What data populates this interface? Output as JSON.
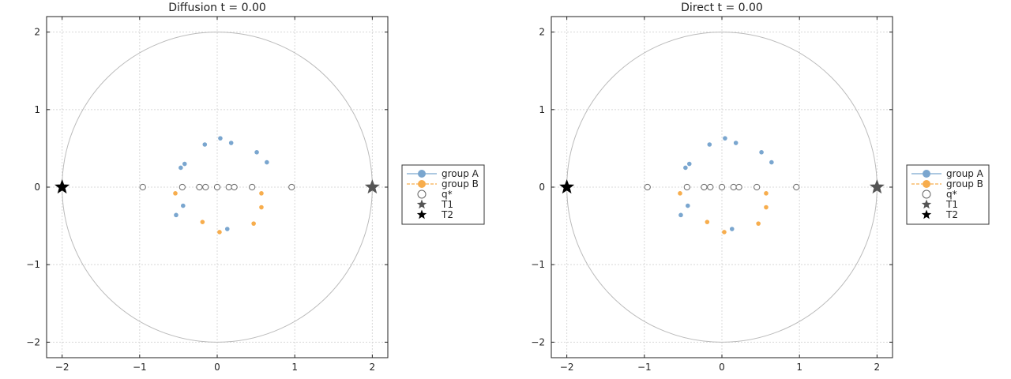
{
  "colors": {
    "group_a": "#7aa6cf",
    "group_b": "#f7ad4d",
    "q_star_stroke": "#666666",
    "t1": "#555555",
    "t2": "#000000",
    "circle": "#bbbbbb",
    "grid": "#d8d8d8"
  },
  "legend": {
    "placement": "outside-right",
    "entries": [
      {
        "label": "group A",
        "marker": "circle-filled",
        "line": "solid",
        "color": "#7aa6cf"
      },
      {
        "label": "group B",
        "marker": "circle-filled",
        "line": "dashed",
        "color": "#f7ad4d"
      },
      {
        "label": "q*",
        "marker": "circle-open",
        "color": "#666666"
      },
      {
        "label": "T1",
        "marker": "star",
        "color": "#555555"
      },
      {
        "label": "T2",
        "marker": "star",
        "color": "#000000"
      }
    ]
  },
  "chart_data": [
    {
      "type": "scatter",
      "title": "Diffusion   t = 0.00",
      "xlim": [
        -2.2,
        2.2
      ],
      "ylim": [
        -2.2,
        2.2
      ],
      "xticks": [
        -2,
        -1,
        0,
        1,
        2
      ],
      "yticks": [
        -2,
        -1,
        0,
        1,
        2
      ],
      "xtick_labels": [
        "−2",
        "−1",
        "0",
        "1",
        "2"
      ],
      "ytick_labels": [
        "−2",
        "−1",
        "0",
        "1",
        "2"
      ],
      "grid": true,
      "boundary_circle_radius": 2,
      "series": [
        {
          "name": "group A",
          "points": [
            [
              0.04,
              0.63
            ],
            [
              0.18,
              0.57
            ],
            [
              -0.16,
              0.55
            ],
            [
              0.51,
              0.45
            ],
            [
              0.64,
              0.32
            ],
            [
              -0.42,
              0.3
            ],
            [
              -0.47,
              0.25
            ],
            [
              -0.44,
              -0.24
            ],
            [
              -0.53,
              -0.36
            ],
            [
              0.13,
              -0.54
            ]
          ]
        },
        {
          "name": "group B",
          "points": [
            [
              -0.54,
              -0.08
            ],
            [
              0.57,
              -0.08
            ],
            [
              0.57,
              -0.26
            ],
            [
              -0.19,
              -0.45
            ],
            [
              0.47,
              -0.47
            ],
            [
              0.03,
              -0.58
            ]
          ]
        },
        {
          "name": "q*",
          "points": [
            [
              -0.96,
              0
            ],
            [
              -0.45,
              0
            ],
            [
              -0.23,
              0
            ],
            [
              -0.15,
              0
            ],
            [
              0,
              0
            ],
            [
              0.15,
              0
            ],
            [
              0.22,
              0
            ],
            [
              0.45,
              0
            ],
            [
              0.96,
              0
            ]
          ]
        },
        {
          "name": "T1",
          "points": [
            [
              2,
              0
            ]
          ]
        },
        {
          "name": "T2",
          "points": [
            [
              -2,
              0
            ]
          ]
        }
      ]
    },
    {
      "type": "scatter",
      "title": "Direct   t = 0.00",
      "xlim": [
        -2.2,
        2.2
      ],
      "ylim": [
        -2.2,
        2.2
      ],
      "xticks": [
        -2,
        -1,
        0,
        1,
        2
      ],
      "yticks": [
        -2,
        -1,
        0,
        1,
        2
      ],
      "xtick_labels": [
        "−2",
        "−1",
        "0",
        "1",
        "2"
      ],
      "ytick_labels": [
        "−2",
        "−1",
        "0",
        "1",
        "2"
      ],
      "grid": true,
      "boundary_circle_radius": 2,
      "series": [
        {
          "name": "group A",
          "points": [
            [
              0.04,
              0.63
            ],
            [
              0.18,
              0.57
            ],
            [
              -0.16,
              0.55
            ],
            [
              0.51,
              0.45
            ],
            [
              0.64,
              0.32
            ],
            [
              -0.42,
              0.3
            ],
            [
              -0.47,
              0.25
            ],
            [
              -0.44,
              -0.24
            ],
            [
              -0.53,
              -0.36
            ],
            [
              0.13,
              -0.54
            ]
          ]
        },
        {
          "name": "group B",
          "points": [
            [
              -0.54,
              -0.08
            ],
            [
              0.57,
              -0.08
            ],
            [
              0.57,
              -0.26
            ],
            [
              -0.19,
              -0.45
            ],
            [
              0.47,
              -0.47
            ],
            [
              0.03,
              -0.58
            ]
          ]
        },
        {
          "name": "q*",
          "points": [
            [
              -0.96,
              0
            ],
            [
              -0.45,
              0
            ],
            [
              -0.23,
              0
            ],
            [
              -0.15,
              0
            ],
            [
              0,
              0
            ],
            [
              0.15,
              0
            ],
            [
              0.22,
              0
            ],
            [
              0.45,
              0
            ],
            [
              0.96,
              0
            ]
          ]
        },
        {
          "name": "T1",
          "points": [
            [
              2,
              0
            ]
          ]
        },
        {
          "name": "T2",
          "points": [
            [
              -2,
              0
            ]
          ]
        }
      ]
    }
  ]
}
